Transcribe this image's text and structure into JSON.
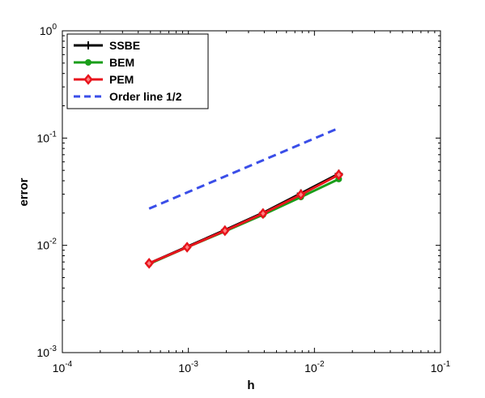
{
  "chart_data": {
    "type": "line",
    "title": "",
    "xlabel": "h",
    "ylabel": "error",
    "xscale": "log",
    "yscale": "log",
    "xlim": [
      0.0001,
      0.1
    ],
    "ylim": [
      0.001,
      1
    ],
    "grid": false,
    "legend_position": "top-left",
    "x_ticks": [
      {
        "base": "10",
        "exp": "-4",
        "value": 0.0001
      },
      {
        "base": "10",
        "exp": "-3",
        "value": 0.001
      },
      {
        "base": "10",
        "exp": "-2",
        "value": 0.01
      },
      {
        "base": "10",
        "exp": "-1",
        "value": 0.1
      }
    ],
    "y_ticks": [
      {
        "base": "10",
        "exp": "-3",
        "value": 0.001
      },
      {
        "base": "10",
        "exp": "-2",
        "value": 0.01
      },
      {
        "base": "10",
        "exp": "-1",
        "value": 0.1
      },
      {
        "base": "10",
        "exp": "0",
        "value": 1
      }
    ],
    "series": [
      {
        "name": "SSBE",
        "color": "#000000",
        "marker": "plus",
        "style": "solid",
        "x": [
          0.000488,
          0.000977,
          0.00195,
          0.00391,
          0.00781,
          0.0156
        ],
        "y": [
          0.0068,
          0.0097,
          0.0139,
          0.0201,
          0.0305,
          0.0465
        ]
      },
      {
        "name": "BEM",
        "color": "#1a9e1a",
        "marker": "circle",
        "style": "solid",
        "x": [
          0.000488,
          0.000977,
          0.00195,
          0.00391,
          0.00781,
          0.0156
        ],
        "y": [
          0.0067,
          0.0096,
          0.0135,
          0.0193,
          0.0282,
          0.0415
        ]
      },
      {
        "name": "PEM",
        "color": "#e8141c",
        "marker": "diamond",
        "style": "solid",
        "x": [
          0.000488,
          0.000977,
          0.00195,
          0.00391,
          0.00781,
          0.0156
        ],
        "y": [
          0.0068,
          0.0096,
          0.0137,
          0.0198,
          0.0297,
          0.0455
        ]
      },
      {
        "name": "Order line 1/2",
        "color": "#3a4ee8",
        "marker": "none",
        "style": "dashed",
        "x": [
          0.000488,
          0.0156
        ],
        "y": [
          0.022,
          0.124
        ]
      }
    ]
  }
}
